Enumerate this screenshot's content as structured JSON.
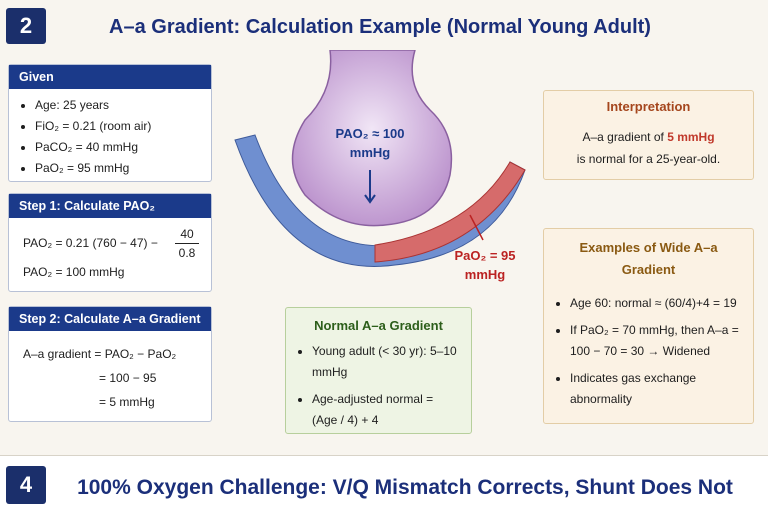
{
  "header": {
    "number": "2",
    "title": "A–a Gradient: Calculation Example (Normal Young Adult)"
  },
  "given": {
    "title": "Given",
    "items": [
      "Age: 25 years",
      "FiO₂ = 0.21 (room air)",
      "PaCO₂ = 40 mmHg",
      "PaO₂ = 95 mmHg"
    ]
  },
  "step1": {
    "title": "Step 1: Calculate PAO₂",
    "formula": "PAO₂ = 0.21 (760 − 47) −",
    "numerator": "40",
    "denominator": "0.8",
    "result": "PAO₂ = 100 mmHg"
  },
  "step2": {
    "title": "Step 2: Calculate A–a Gradient",
    "lines": [
      "A–a gradient = PAO₂ − PaO₂",
      "= 100 − 95",
      "= 5 mmHg"
    ]
  },
  "illustration": {
    "alveolar_label": "PAO₂ ≈ 100 mmHg",
    "arterial_label": "PaO₂ = 95 mmHg"
  },
  "interpretation": {
    "title": "Interpretation",
    "text": "A–a gradient of",
    "highlight": "5 mmHg",
    "conclusion": "is normal for a 25-year-old."
  },
  "normal": {
    "title": "Normal A–a Gradient",
    "items": [
      "Young adult (< 30 yr): 5–10 mmHg",
      "Age-adjusted normal = (Age / 4) + 4"
    ]
  },
  "wide": {
    "title": "Examples of Wide A–a Gradient",
    "items": [
      "Age 60: normal ≈ (60/4)+4 = 19",
      "If PaO₂ = 70 mmHg, then A–a = 100 − 70 = 30 → Widened",
      "Indicates gas exchange abnormality"
    ]
  },
  "footer": {
    "number": "4",
    "title": "100% Oxygen Challenge: V/Q Mismatch Corrects, Shunt Does Not"
  }
}
